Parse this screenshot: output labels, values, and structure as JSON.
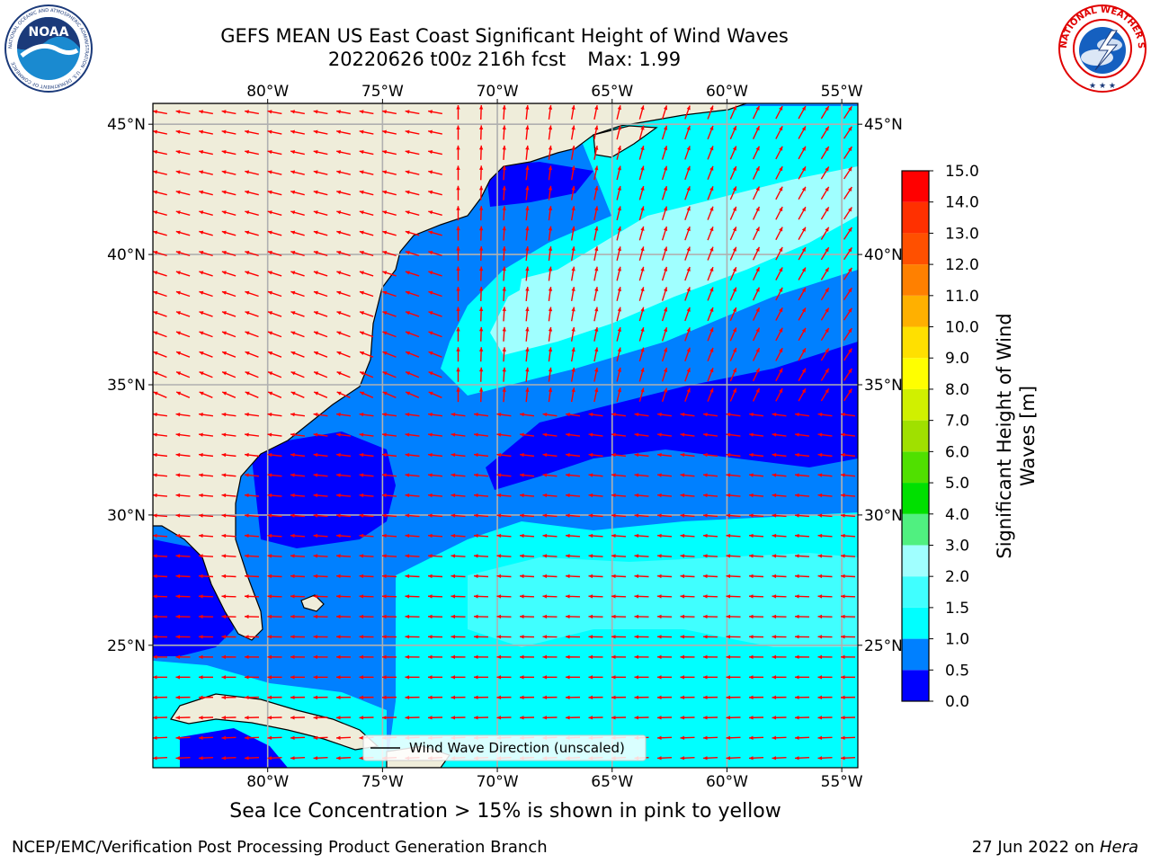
{
  "header": {
    "title_line1": "GEFS MEAN US East Coast Significant Height of Wind Waves",
    "date_fcst": "20220626 t00z 216h fcst",
    "max_label": "Max: 1.99"
  },
  "logos": {
    "noaa": {
      "text": "NOAA",
      "ring": "NATIONAL OCEANIC AND ATMOSPHERIC ADMINISTRATION · U.S. DEPARTMENT OF COMMERCE"
    },
    "nws": {
      "ring": "NATIONAL WEATHER SERVICE"
    }
  },
  "map": {
    "lon_labels": [
      "80°W",
      "75°W",
      "70°W",
      "65°W",
      "60°W",
      "55°W"
    ],
    "lat_labels": [
      "45°N",
      "40°N",
      "35°N",
      "30°N",
      "25°N"
    ],
    "extent": {
      "lon_min": -85,
      "lon_max": -54.3,
      "lat_min": 20.3,
      "lat_max": 45.8
    },
    "legend_label": "Wind Wave Direction (unscaled)",
    "arrow_color": "#ff0000",
    "land_color": "#efedda"
  },
  "colorbar": {
    "label": "Significant Height of Wind Waves [m]",
    "ticks": [
      "0.0",
      "0.5",
      "1.0",
      "1.5",
      "2.0",
      "3.0",
      "4.0",
      "5.0",
      "6.0",
      "7.0",
      "8.0",
      "9.0",
      "10.0",
      "11.0",
      "12.0",
      "13.0",
      "14.0",
      "15.0"
    ],
    "colors": [
      "#0000ff",
      "#0080ff",
      "#00ffff",
      "#40ffff",
      "#a0ffff",
      "#50f080",
      "#00e000",
      "#50e000",
      "#a0e000",
      "#d0f000",
      "#ffff00",
      "#ffe000",
      "#ffb000",
      "#ff8000",
      "#ff5000",
      "#ff3000",
      "#ff0000"
    ]
  },
  "note": "Sea Ice Concentration > 15% is shown in pink to yellow",
  "footer": {
    "left": "NCEP/EMC/Verification Post Processing Product Generation Branch",
    "date": "27 Jun 2022 on",
    "host": "Hera"
  }
}
